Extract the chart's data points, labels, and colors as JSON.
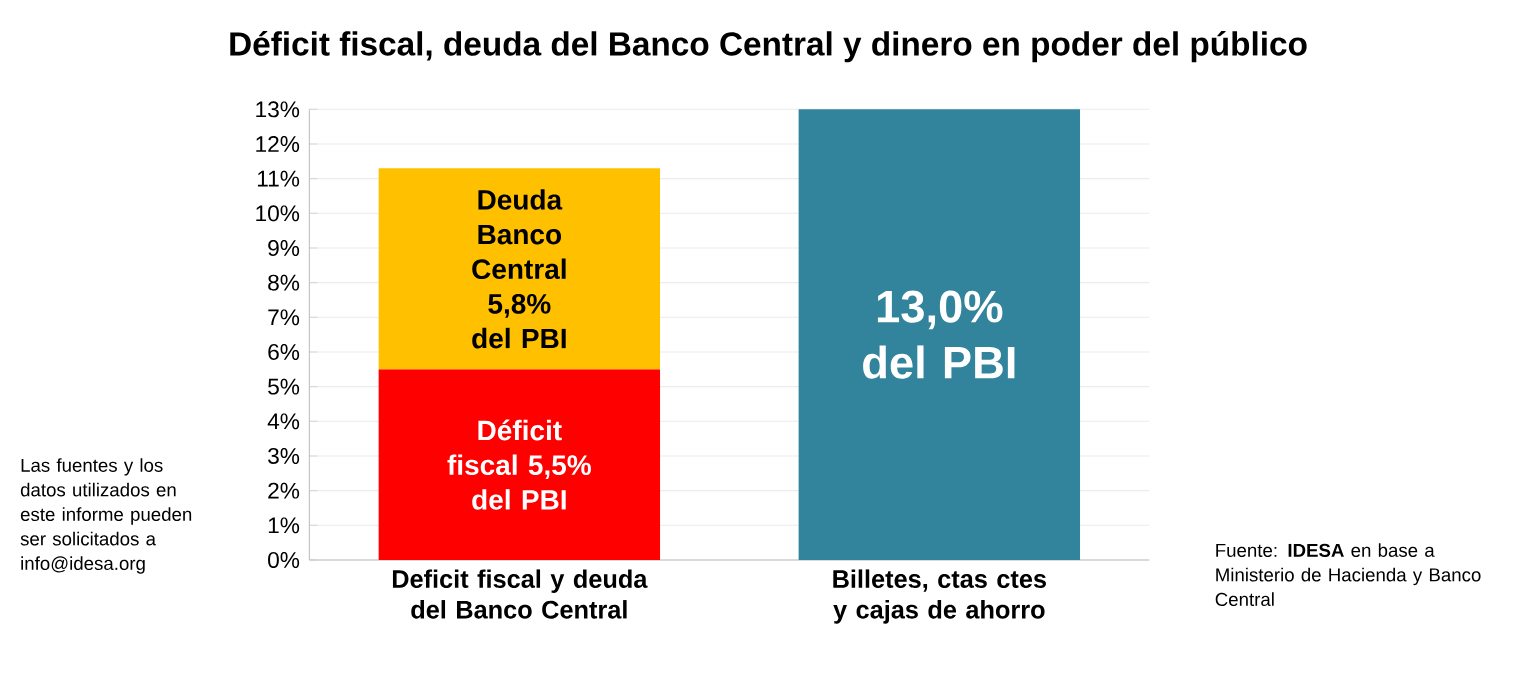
{
  "chart_data": {
    "type": "bar",
    "stacked": true,
    "title": "Déficit fiscal, deuda del Banco Central y dinero en poder del público",
    "categories": [
      "Deficit fiscal y deuda del Banco Central",
      "Billetes, ctas ctes y cajas de ahorro"
    ],
    "series": [
      {
        "color": "#ff0000",
        "values": [
          5.5,
          null
        ],
        "value_labels": [
          "Déficit fiscal 5,5% del PBI",
          null
        ]
      },
      {
        "color": "#ffc000",
        "values": [
          5.8,
          null
        ],
        "value_labels": [
          "Deuda Banco Central 5,8% del PBI",
          null
        ]
      },
      {
        "color": "#31849b",
        "values": [
          null,
          13.0
        ],
        "value_labels": [
          null,
          "13,0% del PBI"
        ]
      }
    ],
    "ylim": [
      0,
      13
    ],
    "yticks": [
      {
        "value": 0,
        "label": "0%"
      },
      {
        "value": 1,
        "label": "1%"
      },
      {
        "value": 2,
        "label": "2%"
      },
      {
        "value": 3,
        "label": "3%"
      },
      {
        "value": 4,
        "label": "4%"
      },
      {
        "value": 5,
        "label": "5%"
      },
      {
        "value": 6,
        "label": "6%"
      },
      {
        "value": 7,
        "label": "7%"
      },
      {
        "value": 8,
        "label": "8%"
      },
      {
        "value": 9,
        "label": "9%"
      },
      {
        "value": 10,
        "label": "10%"
      },
      {
        "value": 11,
        "label": "11%"
      },
      {
        "value": 12,
        "label": "12%"
      },
      {
        "value": 13,
        "label": "13%"
      }
    ],
    "grid": "y",
    "annotations": [
      "Las fuentes y los datos utilizados en este informe pueden ser solicitados a info@idesa.org",
      "Fuente: **IDESA** en base a Ministerio de Hacienda y Banco Central"
    ]
  }
}
